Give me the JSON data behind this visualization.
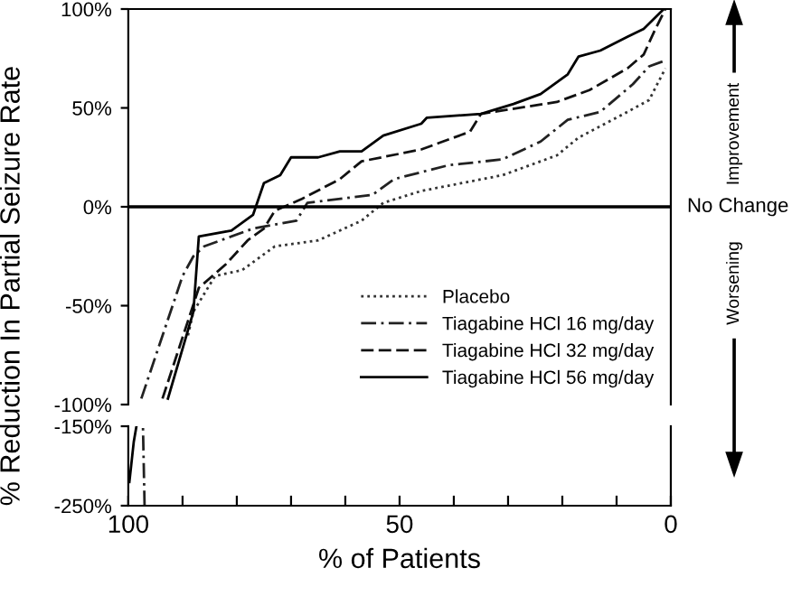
{
  "chart_data": [
    {
      "type": "line",
      "ylabel": "% Reduction In Partial Seizure Rate",
      "tick_labels": "y",
      "xlim": [
        100,
        0
      ],
      "ylim": [
        -100,
        100
      ],
      "yticks": [
        {
          "value": 100,
          "label": "100%"
        },
        {
          "value": 50,
          "label": "50%"
        },
        {
          "value": 0,
          "label": "0%"
        },
        {
          "value": -50,
          "label": "-50%"
        },
        {
          "value": -100,
          "label": "-100%"
        }
      ],
      "grid": false,
      "legend": "bottom right",
      "ref_lines": [
        {
          "axis": "y",
          "value": 0,
          "label": "No Change",
          "color": "#000000"
        }
      ],
      "annotations": [
        "Improvement",
        "Worsening"
      ],
      "series": [
        {
          "name": "Placebo",
          "color": "#333333",
          "line_style": "dotted",
          "x": [
            89,
            88,
            84,
            79,
            73,
            65,
            57,
            53,
            46,
            31,
            21,
            17,
            8,
            4,
            1
          ],
          "values": [
            -65,
            -53,
            -35,
            -32,
            -20,
            -17,
            -7,
            2,
            8,
            16,
            26,
            35,
            48,
            54,
            70
          ]
        },
        {
          "name": "Tiagabine HCl 16 mg/day",
          "color": "#222222",
          "line_style": "dashdot",
          "x": [
            97.6,
            90,
            88,
            86,
            77,
            69,
            67,
            55,
            51,
            41,
            31,
            24,
            19,
            13,
            7,
            4,
            1
          ],
          "values": [
            -97,
            -35,
            -25,
            -20,
            -11,
            -7,
            2,
            6,
            14,
            21,
            24,
            33,
            44,
            48,
            62,
            71,
            74
          ]
        },
        {
          "name": "Tiagabine HCl 32 mg/day",
          "color": "#111111",
          "line_style": "dashed",
          "x": [
            93.7,
            87,
            82,
            78,
            75,
            73,
            68,
            61,
            57,
            46,
            37,
            35,
            21,
            15,
            8,
            5,
            3,
            1
          ],
          "values": [
            -97,
            -41,
            -29,
            -17,
            -11,
            -2,
            4,
            14,
            23,
            29,
            38,
            47,
            53,
            59,
            70,
            77,
            89,
            100
          ]
        },
        {
          "name": "Tiagabine HCl 56 mg/day",
          "color": "#000000",
          "line_style": "solid",
          "x": [
            92.7,
            88,
            87,
            81,
            77,
            75,
            72,
            70,
            65,
            61,
            57,
            53,
            46,
            45,
            35,
            29,
            24,
            19,
            17,
            13,
            8,
            5,
            1.3
          ],
          "values": [
            -97,
            -53,
            -15,
            -12,
            -4,
            12,
            16,
            25,
            25,
            28,
            28,
            36,
            42,
            45,
            47,
            52,
            57,
            67,
            76,
            79,
            86,
            90,
            100
          ]
        }
      ]
    },
    {
      "type": "line",
      "xlabel": "% of Patients",
      "xlim": [
        100,
        0
      ],
      "xticks": [
        100,
        {
          "value": 90,
          "label": null
        },
        {
          "value": 80,
          "label": null
        },
        {
          "value": 70,
          "label": null
        },
        {
          "value": 60,
          "label": null
        },
        50,
        {
          "value": 40,
          "label": null
        },
        {
          "value": 30,
          "label": null
        },
        {
          "value": 20,
          "label": null
        },
        {
          "value": 10,
          "label": null
        },
        0
      ],
      "ylim": [
        -250,
        -150
      ],
      "yticks": [
        {
          "value": -150,
          "label": "-150%"
        },
        {
          "value": -250,
          "label": "-250%"
        }
      ],
      "grid": false,
      "series": [
        {
          "color": "#222222",
          "line_style": "dashdot",
          "x": [
            97,
            97.3
          ],
          "values": [
            -250,
            -150
          ]
        },
        {
          "color": "#000000",
          "line_style": "solid",
          "x": [
            99.8,
            99,
            98.5
          ],
          "values": [
            -220,
            -170,
            -150
          ]
        }
      ]
    }
  ]
}
